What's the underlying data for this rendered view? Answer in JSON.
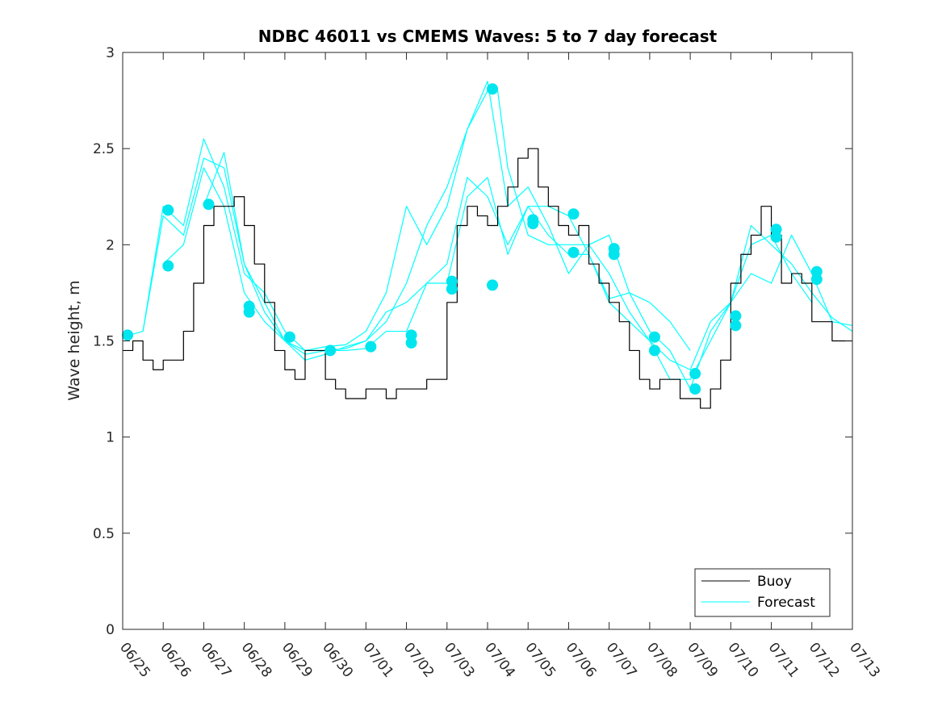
{
  "chart_data": {
    "type": "line",
    "title": "NDBC 46011 vs CMEMS Waves: 5 to 7 day forecast",
    "xlabel": "",
    "ylabel": "Wave height, m",
    "x_ticks": [
      "06/25",
      "06/26",
      "06/27",
      "06/28",
      "06/29",
      "06/30",
      "07/01",
      "07/02",
      "07/03",
      "07/04",
      "07/05",
      "07/06",
      "07/07",
      "07/08",
      "07/09",
      "07/10",
      "07/11",
      "07/12",
      "07/13"
    ],
    "y_ticks": [
      "0",
      "0.5",
      "1",
      "1.5",
      "2",
      "2.5",
      "3"
    ],
    "xlim_days": [
      0,
      18
    ],
    "ylim": [
      0,
      3
    ],
    "grid": false,
    "legend_position": "bottom-right",
    "legend": [
      "Buoy",
      "Forecast"
    ],
    "colors": {
      "buoy": "#000000",
      "forecast": "#00ffff",
      "marker": "#00e5ee",
      "axis": "#262626"
    },
    "series": [
      {
        "name": "Buoy",
        "color": "#000000",
        "x": [
          0.0,
          0.25,
          0.5,
          0.75,
          1.0,
          1.25,
          1.5,
          1.75,
          2.0,
          2.25,
          2.5,
          2.75,
          3.0,
          3.25,
          3.5,
          3.75,
          4.0,
          4.25,
          4.5,
          4.75,
          5.0,
          5.25,
          5.5,
          5.75,
          6.0,
          6.25,
          6.5,
          6.75,
          7.0,
          7.25,
          7.5,
          7.75,
          8.0,
          8.25,
          8.5,
          8.75,
          9.0,
          9.25,
          9.5,
          9.75,
          10.0,
          10.25,
          10.5,
          10.75,
          11.0,
          11.25,
          11.5,
          11.75,
          12.0,
          12.25,
          12.5,
          12.75,
          13.0,
          13.25,
          13.5,
          13.75,
          14.0,
          14.25,
          14.5,
          14.75,
          15.0,
          15.25,
          15.5,
          15.75,
          16.0,
          16.25,
          16.5,
          16.75,
          17.0,
          17.25,
          17.5,
          17.75,
          18.0
        ],
        "y": [
          1.45,
          1.5,
          1.4,
          1.35,
          1.4,
          1.4,
          1.55,
          1.8,
          2.1,
          2.2,
          2.2,
          2.25,
          2.1,
          1.9,
          1.7,
          1.45,
          1.35,
          1.3,
          1.45,
          1.45,
          1.3,
          1.25,
          1.2,
          1.2,
          1.25,
          1.25,
          1.2,
          1.25,
          1.25,
          1.25,
          1.3,
          1.3,
          1.7,
          2.1,
          2.2,
          2.15,
          2.1,
          2.2,
          2.3,
          2.45,
          2.5,
          2.3,
          2.2,
          2.1,
          2.05,
          2.1,
          1.9,
          1.8,
          1.7,
          1.6,
          1.45,
          1.3,
          1.25,
          1.3,
          1.3,
          1.2,
          1.2,
          1.15,
          1.25,
          1.4,
          1.8,
          1.95,
          2.05,
          2.2,
          2.05,
          1.8,
          1.85,
          1.8,
          1.6,
          1.6,
          1.5,
          1.5,
          1.5
        ]
      },
      {
        "name": "Forecast",
        "color": "#00ffff",
        "x": [
          0.0,
          0.5,
          1.0,
          1.5,
          2.0,
          2.5,
          3.0,
          3.5,
          4.0,
          4.5,
          5.0,
          5.5,
          6.0,
          6.5,
          7.0,
          7.5,
          8.0,
          8.5,
          9.0,
          9.25,
          9.5,
          10.0,
          10.5,
          11.0,
          11.5,
          12.0,
          12.5,
          13.0,
          13.5,
          14.0,
          14.5,
          15.0,
          15.5,
          16.0,
          16.5,
          17.0,
          17.5,
          18.0
        ],
        "y": [
          1.52,
          1.55,
          2.15,
          2.05,
          2.45,
          2.4,
          1.9,
          1.7,
          1.5,
          1.43,
          1.45,
          1.46,
          1.5,
          1.6,
          1.8,
          2.1,
          2.3,
          2.6,
          2.8,
          2.8,
          2.4,
          2.05,
          2.0,
          2.0,
          2.0,
          1.85,
          1.65,
          1.5,
          1.3,
          1.3,
          1.5,
          1.7,
          2.1,
          2.0,
          1.9,
          1.75,
          1.62,
          1.55
        ]
      },
      {
        "name": "Forecast",
        "color": "#00ffff",
        "x": [
          0.5,
          1.0,
          1.5,
          2.0,
          2.5,
          3.0,
          3.5,
          4.0,
          4.5,
          5.0,
          5.5,
          6.0,
          6.5,
          7.0,
          7.5,
          8.0,
          8.5,
          9.0,
          9.5,
          10.0,
          10.5,
          11.0,
          11.5,
          12.0,
          12.5,
          13.0,
          13.5,
          14.0
        ],
        "y": [
          1.55,
          2.2,
          2.1,
          2.55,
          2.3,
          1.85,
          1.75,
          1.55,
          1.45,
          1.47,
          1.48,
          1.55,
          1.75,
          2.2,
          2.0,
          2.2,
          2.6,
          2.85,
          2.2,
          2.3,
          2.1,
          1.85,
          2.0,
          2.05,
          1.75,
          1.7,
          1.6,
          1.45
        ]
      },
      {
        "name": "Forecast",
        "color": "#00ffff",
        "x": [
          1.0,
          1.5,
          2.0,
          2.5,
          3.0,
          3.5,
          4.0,
          4.5,
          5.0,
          5.5,
          6.0,
          6.5,
          7.0,
          7.5,
          8.0,
          8.5,
          9.0,
          9.5,
          10.0,
          10.5,
          11.0,
          11.5,
          12.0,
          12.5,
          13.0,
          13.5,
          14.0,
          14.5,
          15.0,
          15.5,
          16.0,
          16.5,
          17.0
        ],
        "y": [
          1.9,
          2.0,
          2.4,
          2.2,
          1.75,
          1.6,
          1.5,
          1.4,
          1.43,
          1.47,
          1.5,
          1.65,
          1.7,
          1.8,
          1.9,
          2.35,
          2.25,
          2.0,
          2.2,
          2.2,
          2.15,
          1.95,
          1.7,
          1.6,
          1.5,
          1.4,
          1.35,
          1.6,
          1.7,
          2.0,
          2.05,
          1.85,
          1.7
        ]
      },
      {
        "name": "Forecast",
        "color": "#00ffff",
        "x": [
          2.0,
          2.5,
          3.0,
          3.5,
          4.0,
          4.5,
          5.0,
          5.5,
          6.0,
          6.5,
          7.0,
          7.5,
          8.0,
          8.5,
          9.0,
          9.5,
          10.0,
          10.5,
          11.0,
          11.5,
          12.0,
          12.5,
          13.0,
          13.5,
          14.0,
          14.5,
          15.0,
          15.5,
          16.0,
          16.5,
          17.0,
          17.5,
          18.0
        ],
        "y": [
          2.2,
          2.48,
          1.9,
          1.65,
          1.5,
          1.45,
          1.45,
          1.45,
          1.46,
          1.55,
          1.55,
          1.8,
          1.8,
          2.25,
          2.35,
          1.95,
          2.2,
          2.05,
          1.95,
          1.95,
          1.72,
          1.75,
          1.55,
          1.45,
          1.25,
          1.55,
          1.7,
          1.85,
          1.8,
          2.05,
          1.85,
          1.6,
          1.58
        ]
      }
    ],
    "markers": {
      "name": "Forecast start points",
      "color": "#00e5ee",
      "x": [
        0.12,
        1.12,
        1.12,
        2.12,
        3.12,
        3.12,
        4.12,
        5.12,
        6.12,
        7.12,
        7.12,
        8.12,
        8.12,
        9.12,
        9.12,
        10.12,
        10.12,
        11.12,
        11.12,
        12.12,
        12.12,
        13.12,
        13.12,
        14.12,
        14.12,
        15.12,
        15.12,
        16.12,
        16.12,
        17.12,
        17.12
      ],
      "y": [
        1.53,
        2.18,
        1.89,
        2.21,
        1.68,
        1.65,
        1.52,
        1.45,
        1.47,
        1.53,
        1.49,
        1.81,
        1.77,
        2.81,
        1.79,
        2.13,
        2.11,
        2.16,
        1.96,
        1.98,
        1.95,
        1.52,
        1.45,
        1.33,
        1.25,
        1.63,
        1.58,
        2.08,
        2.04,
        1.86,
        1.82
      ]
    }
  }
}
